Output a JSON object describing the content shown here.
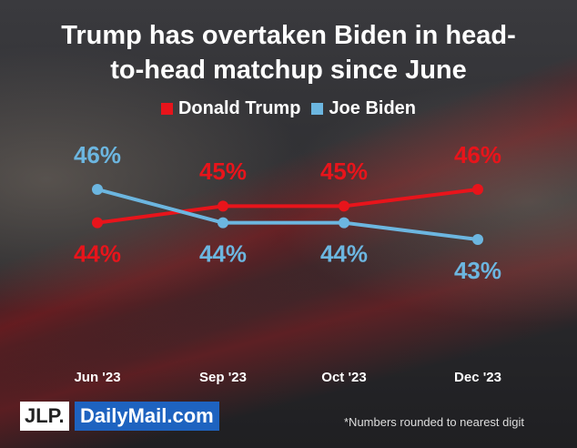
{
  "chart_data": {
    "type": "line",
    "title": "Trump has overtaken Biden in head-to-head matchup since June",
    "categories": [
      "Jun '23",
      "Sep '23",
      "Oct '23",
      "Dec '23"
    ],
    "series": [
      {
        "name": "Donald Trump",
        "color": "#e8141b",
        "values": [
          44,
          45,
          45,
          46
        ],
        "value_labels": [
          "44%",
          "45%",
          "45%",
          "46%"
        ]
      },
      {
        "name": "Joe Biden",
        "color": "#6cb6e0",
        "values": [
          46,
          44,
          44,
          43
        ],
        "value_labels": [
          "46%",
          "44%",
          "44%",
          "43%"
        ]
      }
    ],
    "footnote": "*Numbers rounded to nearest digit",
    "logos": [
      "JLP.",
      "DailyMail.com"
    ]
  }
}
